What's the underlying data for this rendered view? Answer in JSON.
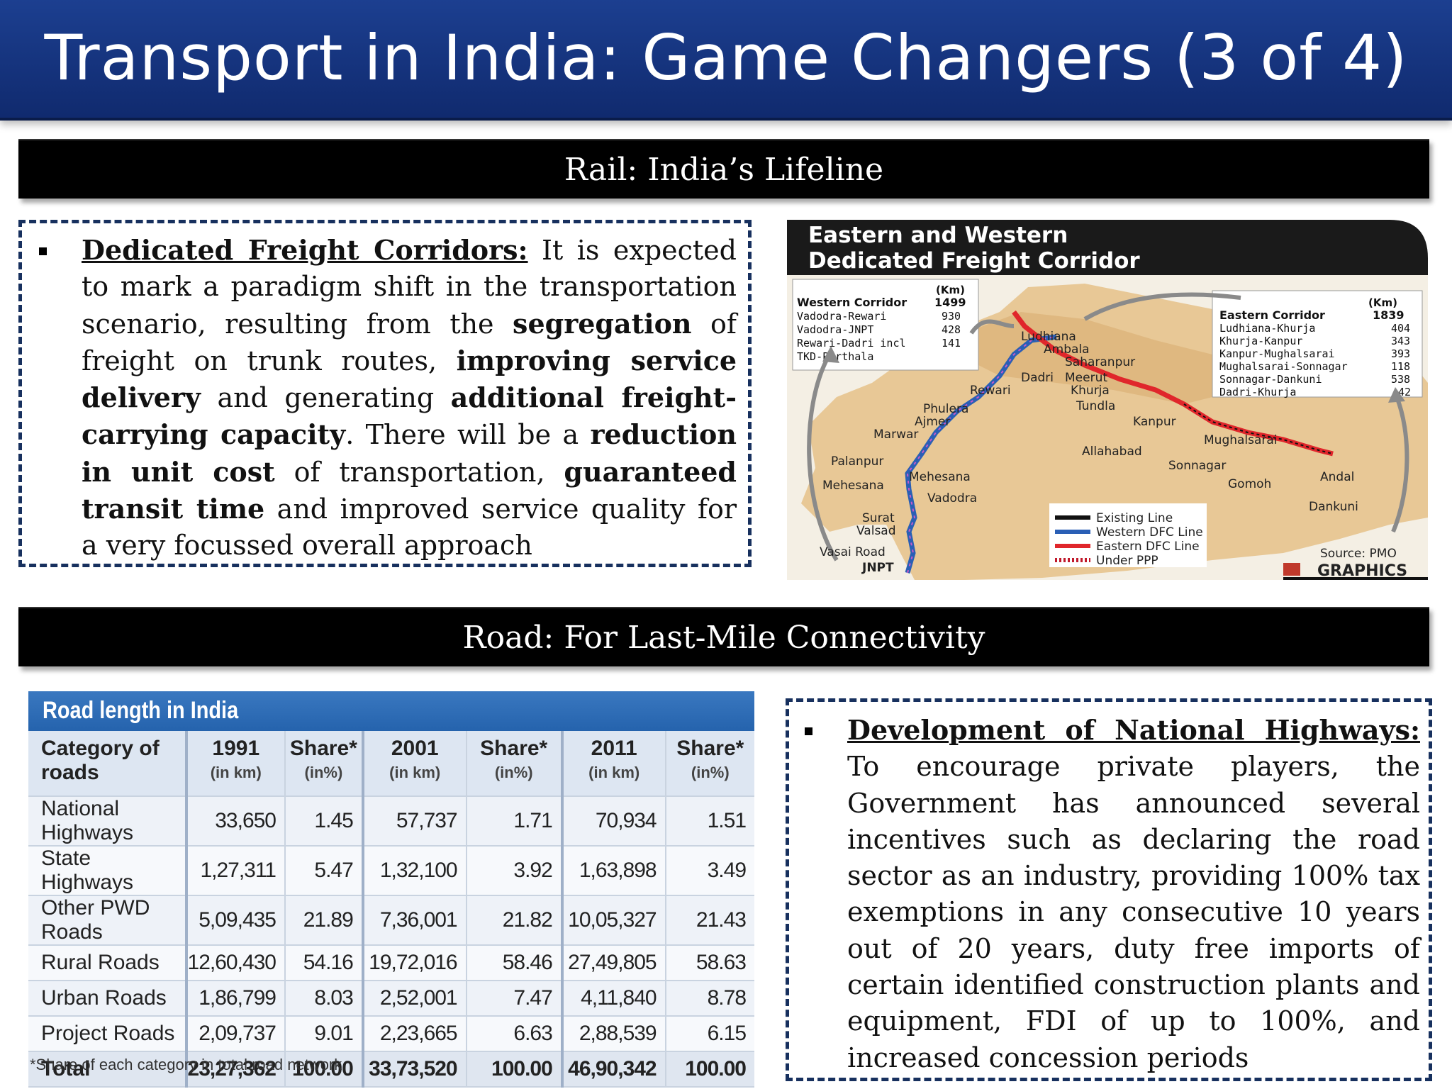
{
  "slide": {
    "title": "Transport in India: Game Changers (3 of 4)"
  },
  "rail": {
    "banner": "Rail: India’s Lifeline",
    "heading": "Dedicated Freight Corridors:",
    "text_parts": [
      " It is expected to mark a paradigm shift in the transportation scenario, resulting from the ",
      "segregation",
      " of freight on trunk routes, ",
      "improving service delivery",
      " and generating ",
      "additional freight-carrying capacity",
      ". There will be a ",
      "reduction in unit cost",
      " of transportation, ",
      "guaranteed transit time",
      " and improved service quality for a very focussed overall approach"
    ]
  },
  "map": {
    "title_line1": "Eastern and Western",
    "title_line2": "Dedicated Freight Corridor",
    "western": {
      "unit": "(Km)",
      "header": "Western Corridor",
      "total": "1499",
      "rows": [
        [
          "Vadodra-Rewari",
          "930"
        ],
        [
          "Vadodra-JNPT",
          "428"
        ],
        [
          "Rewari-Dadri incl",
          "141"
        ],
        [
          "TKD-Pirthala",
          ""
        ]
      ]
    },
    "eastern": {
      "unit": "(Km)",
      "header": "Eastern Corridor",
      "total": "1839",
      "rows": [
        [
          "Ludhiana-Khurja",
          "404"
        ],
        [
          "Khurja-Kanpur",
          "343"
        ],
        [
          "Kanpur-Mughalsarai",
          "393"
        ],
        [
          "Mughalsarai-Sonnagar",
          "118"
        ],
        [
          "Sonnagar-Dankuni",
          "538"
        ],
        [
          "Dadri-Khurja",
          "42"
        ]
      ]
    },
    "cities": {
      "ludhiana": "Ludhiana",
      "ambala": "Ambala",
      "saharanpur": "Saharanpur",
      "dadri": "Dadri",
      "rewari": "Rewari",
      "meerut": "Meerut",
      "khurja": "Khurja",
      "tundla": "Tundla",
      "phulera": "Phulera",
      "ajmer": "Ajmer",
      "marwar": "Marwar",
      "kanpur": "Kanpur",
      "allahabad": "Allahabad",
      "mughalsarai": "Mughalsarai",
      "sonnagar": "Sonnagar",
      "gomoh": "Gomoh",
      "andal": "Andal",
      "dankuni": "Dankuni",
      "palanpur": "Palanpur",
      "mehesana1": "Mehesana",
      "mehesana2": "Mehesana",
      "vadodra": "Vadodra",
      "surat": "Surat",
      "valsad": "Valsad",
      "vasai": "Vasai Road",
      "jnpt": "JNPT"
    },
    "legend": [
      {
        "label": "Existing Line",
        "color": "#111111"
      },
      {
        "label": "Western DFC Line",
        "color": "#2a5fb5"
      },
      {
        "label": "Eastern DFC Line",
        "color": "#e0262b"
      },
      {
        "label": "Under PPP",
        "color": "#c0182a"
      }
    ],
    "source": "Source: PMO",
    "credit": "GRAPHICS"
  },
  "road": {
    "banner": "Road: For Last-Mile Connectivity",
    "table_title": "Road length in India",
    "columns": [
      {
        "label": "Category of roads",
        "sub": ""
      },
      {
        "label": "1991",
        "sub": "(in km)"
      },
      {
        "label": "Share*",
        "sub": "(in%)"
      },
      {
        "label": "2001",
        "sub": "(in km)"
      },
      {
        "label": "Share*",
        "sub": "(in%)"
      },
      {
        "label": "2011",
        "sub": "(in km)"
      },
      {
        "label": "Share*",
        "sub": "(in%)"
      }
    ],
    "rows": [
      [
        "National Highways",
        "33,650",
        "1.45",
        "57,737",
        "1.71",
        "70,934",
        "1.51"
      ],
      [
        "State Highways",
        "1,27,311",
        "5.47",
        "1,32,100",
        "3.92",
        "1,63,898",
        "3.49"
      ],
      [
        "Other PWD Roads",
        "5,09,435",
        "21.89",
        "7,36,001",
        "21.82",
        "10,05,327",
        "21.43"
      ],
      [
        "Rural Roads",
        "12,60,430",
        "54.16",
        "19,72,016",
        "58.46",
        "27,49,805",
        "58.63"
      ],
      [
        "Urban Roads",
        "1,86,799",
        "8.03",
        "2,52,001",
        "7.47",
        "4,11,840",
        "8.78"
      ],
      [
        "Project Roads",
        "2,09,737",
        "9.01",
        "2,23,665",
        "6.63",
        "2,88,539",
        "6.15"
      ],
      [
        "Total",
        "23,27,362",
        "100.00",
        "33,73,520",
        "100.00",
        "46,90,342",
        "100.00"
      ]
    ],
    "footnote": "*Share of each category in total road network",
    "highway_heading": "Development of National Highways:",
    "highway_text": " To encourage private players, the Government has announced several incentives such as declaring the road sector as an industry, providing 100% tax exemptions in any consecutive 10 years out of 20 years, duty free imports of certain identified construction plants and equipment, FDI of up to 100%, and increased concession periods"
  }
}
